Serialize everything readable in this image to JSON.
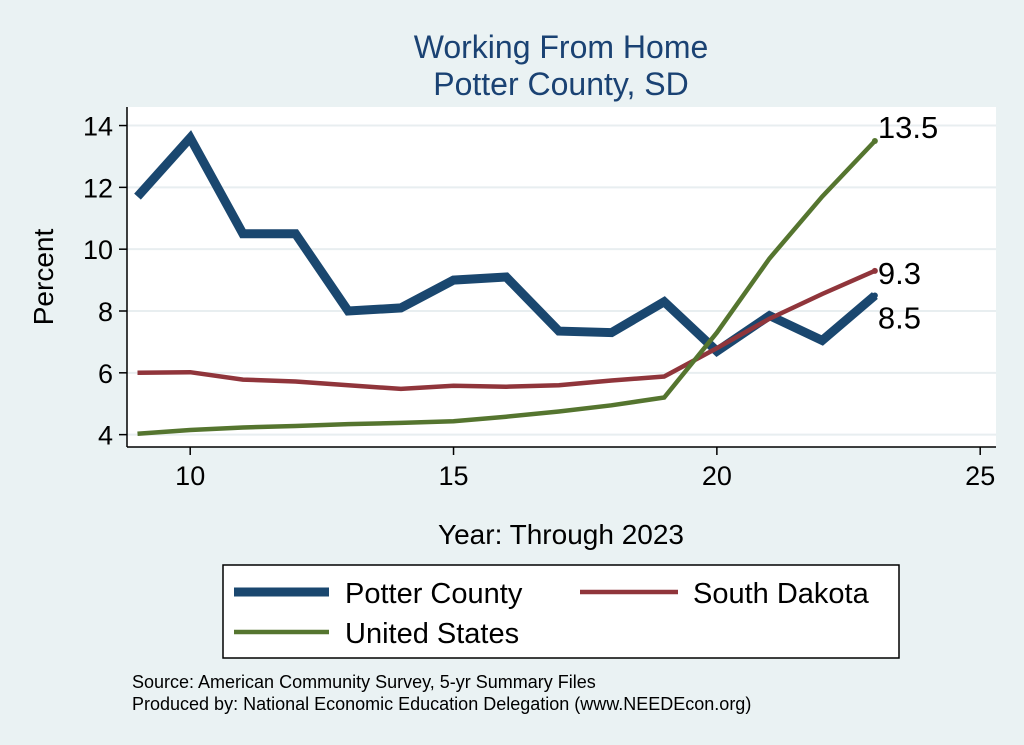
{
  "chart_data": {
    "type": "line",
    "title": [
      "Working From Home",
      "Potter County, SD"
    ],
    "xlabel": "Year: Through 2023",
    "ylabel": "Percent",
    "xlim": [
      8.8,
      25.3
    ],
    "ylim": [
      3.6,
      14.6
    ],
    "xticks": [
      10,
      15,
      20,
      25
    ],
    "yticks": [
      4,
      6,
      8,
      10,
      12,
      14
    ],
    "grid": true,
    "x": [
      9,
      10,
      11,
      12,
      13,
      14,
      15,
      16,
      17,
      18,
      19,
      20,
      21,
      22,
      23
    ],
    "series": [
      {
        "name": "Potter County",
        "color": "#1a476f",
        "values": [
          11.7,
          13.6,
          10.5,
          10.5,
          8.0,
          8.1,
          9.0,
          9.1,
          7.35,
          7.3,
          8.3,
          6.7,
          7.85,
          7.05,
          8.5
        ],
        "end_label": "8.5"
      },
      {
        "name": "South Dakota",
        "color": "#90353b",
        "values": [
          6.0,
          6.02,
          5.78,
          5.72,
          5.6,
          5.48,
          5.58,
          5.55,
          5.6,
          5.75,
          5.88,
          6.8,
          7.75,
          8.55,
          9.3
        ],
        "end_label": "9.3"
      },
      {
        "name": "United States",
        "color": "#55752f",
        "values": [
          4.03,
          4.15,
          4.23,
          4.28,
          4.34,
          4.38,
          4.43,
          4.58,
          4.75,
          4.95,
          5.2,
          7.3,
          9.7,
          11.7,
          13.5
        ],
        "end_label": "13.5"
      }
    ],
    "legend": {
      "placement": "bottom",
      "entries": [
        "Potter County",
        "South Dakota",
        "United States"
      ]
    }
  },
  "note": {
    "source": "Source: American Community Survey, 5-yr Summary Files",
    "produced_by": "Produced by: National Economic Education Delegation (www.NEEDEcon.org)"
  }
}
